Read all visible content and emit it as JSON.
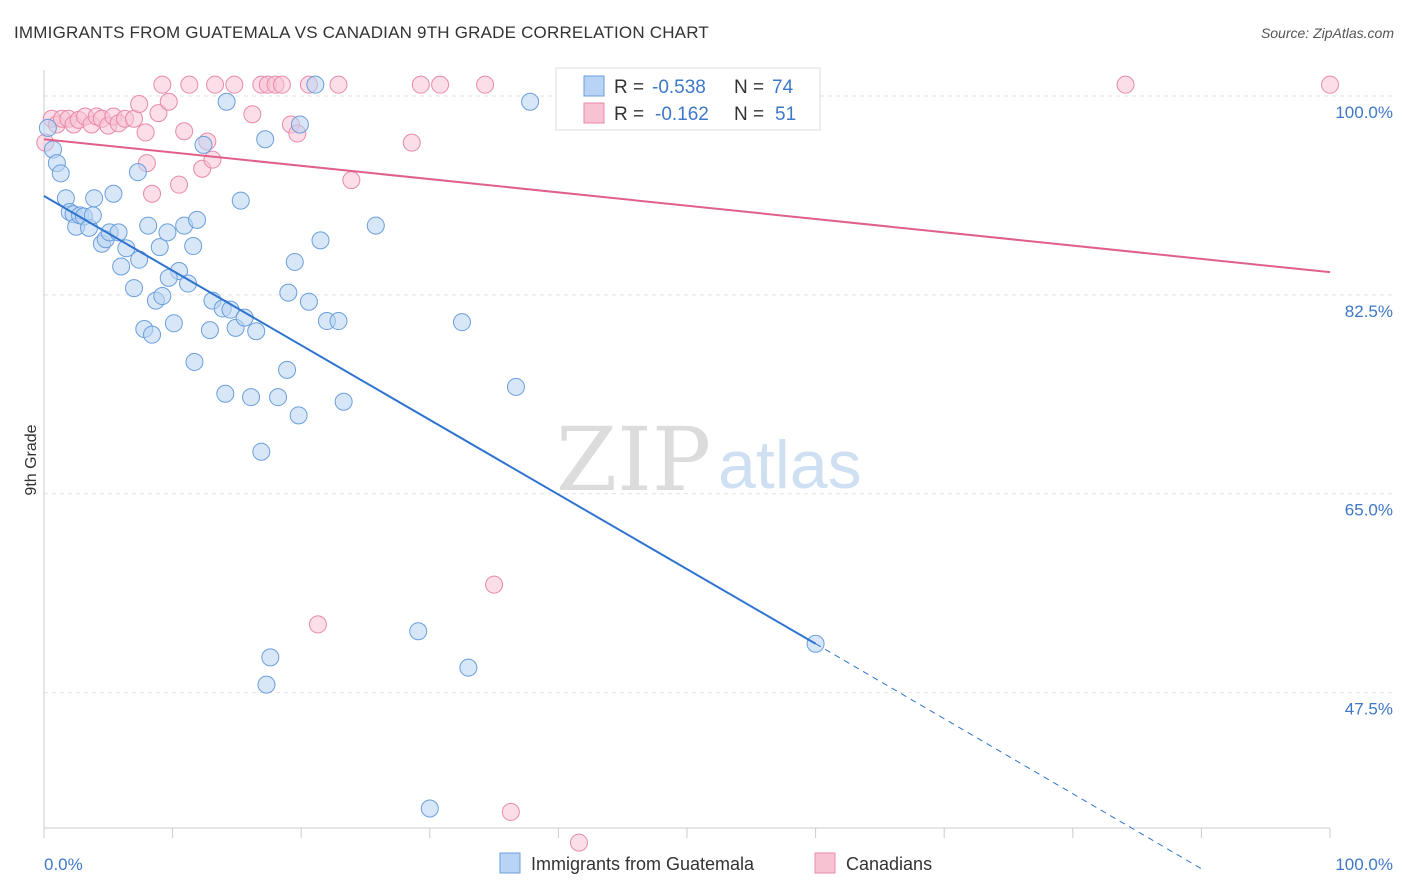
{
  "title": "IMMIGRANTS FROM GUATEMALA VS CANADIAN 9TH GRADE CORRELATION CHART",
  "source": "Source: ZipAtlas.com",
  "watermark": {
    "zip": "ZIP",
    "atlas": "atlas"
  },
  "colors": {
    "blue_fill": "#b8d3f3",
    "blue_stroke": "#6a9fdc",
    "blue_line": "#2f74d0",
    "pink_fill": "#f7c3d3",
    "pink_stroke": "#e98aaa",
    "pink_line": "#e0608a",
    "grid": "#e2e2e2",
    "tick_text": "#3e78c8"
  },
  "legend": {
    "rows": [
      {
        "r_label": "R =",
        "r_value": "-0.538",
        "n_label": "N =",
        "n_value": "74"
      },
      {
        "r_label": "R =",
        "r_value": "-0.162",
        "n_label": "N =",
        "n_value": "51"
      }
    ]
  },
  "bottom_legend": {
    "series1": "Immigrants from Guatemala",
    "series2": "Canadians"
  },
  "chart_data": {
    "type": "scatter",
    "title": "IMMIGRANTS FROM GUATEMALA VS CANADIAN 9TH GRADE CORRELATION CHART",
    "xlabel": "",
    "ylabel": "9th Grade",
    "xlim": [
      0,
      100
    ],
    "ylim": [
      34,
      101.5
    ],
    "x_tick_labels": [
      "0.0%",
      "100.0%"
    ],
    "y_ticks": [
      47.5,
      65.0,
      82.5,
      100.0
    ],
    "y_tick_labels": [
      "47.5%",
      "65.0%",
      "82.5%",
      "100.0%"
    ],
    "grid": "horizontal dashed",
    "legend_placement": "top-center",
    "series": [
      {
        "name": "Immigrants from Guatemala",
        "color": "#b8d3f3",
        "R": -0.538,
        "N": 74,
        "trend": {
          "x": [
            0,
            60
          ],
          "y": [
            91.2,
            51.8
          ],
          "dashed_extension_to": [
            90,
            32.0
          ]
        },
        "points": [
          [
            0.3,
            97.2
          ],
          [
            0.7,
            95.3
          ],
          [
            1.0,
            94.1
          ],
          [
            1.3,
            93.2
          ],
          [
            1.7,
            91.0
          ],
          [
            2.0,
            89.8
          ],
          [
            2.3,
            89.6
          ],
          [
            2.5,
            88.5
          ],
          [
            2.8,
            89.5
          ],
          [
            3.1,
            89.4
          ],
          [
            3.5,
            88.4
          ],
          [
            3.8,
            89.5
          ],
          [
            3.9,
            91.0
          ],
          [
            4.5,
            87.0
          ],
          [
            4.8,
            87.4
          ],
          [
            5.1,
            88.0
          ],
          [
            5.4,
            91.4
          ],
          [
            5.8,
            88.0
          ],
          [
            6.0,
            85.0
          ],
          [
            6.4,
            86.6
          ],
          [
            7.0,
            83.1
          ],
          [
            7.4,
            85.6
          ],
          [
            7.8,
            79.5
          ],
          [
            8.1,
            88.6
          ],
          [
            8.4,
            79.0
          ],
          [
            8.7,
            82.0
          ],
          [
            9.0,
            86.7
          ],
          [
            9.2,
            82.4
          ],
          [
            9.6,
            88.0
          ],
          [
            10.1,
            80.0
          ],
          [
            10.5,
            84.6
          ],
          [
            10.9,
            88.6
          ],
          [
            11.2,
            83.5
          ],
          [
            11.6,
            86.8
          ],
          [
            11.9,
            89.1
          ],
          [
            12.4,
            95.7
          ],
          [
            12.9,
            79.4
          ],
          [
            13.1,
            82.0
          ],
          [
            13.9,
            81.3
          ],
          [
            14.1,
            73.8
          ],
          [
            14.2,
            99.5
          ],
          [
            14.5,
            81.2
          ],
          [
            14.9,
            79.6
          ],
          [
            15.3,
            90.8
          ],
          [
            15.6,
            80.5
          ],
          [
            16.1,
            73.5
          ],
          [
            16.5,
            79.3
          ],
          [
            16.9,
            68.7
          ],
          [
            17.3,
            48.2
          ],
          [
            17.6,
            50.6
          ],
          [
            18.2,
            73.5
          ],
          [
            18.9,
            75.9
          ],
          [
            19.0,
            82.7
          ],
          [
            19.5,
            85.4
          ],
          [
            19.8,
            71.9
          ],
          [
            19.9,
            97.5
          ],
          [
            20.6,
            81.9
          ],
          [
            21.1,
            101.0
          ],
          [
            21.5,
            87.3
          ],
          [
            22.0,
            80.2
          ],
          [
            22.9,
            80.2
          ],
          [
            23.3,
            73.1
          ],
          [
            25.8,
            88.6
          ],
          [
            29.1,
            52.9
          ],
          [
            30.0,
            37.3
          ],
          [
            32.5,
            80.1
          ],
          [
            33.0,
            49.7
          ],
          [
            36.7,
            74.4
          ],
          [
            37.8,
            99.5
          ],
          [
            60.0,
            51.8
          ],
          [
            7.3,
            93.3
          ],
          [
            9.7,
            84.0
          ],
          [
            11.7,
            76.6
          ],
          [
            17.2,
            96.2
          ]
        ]
      },
      {
        "name": "Canadians",
        "color": "#f7c3d3",
        "R": -0.162,
        "N": 51,
        "trend": {
          "x": [
            0,
            100
          ],
          "y": [
            96.2,
            84.5
          ]
        },
        "points": [
          [
            0.1,
            95.9
          ],
          [
            0.6,
            98.0
          ],
          [
            1.0,
            97.5
          ],
          [
            1.4,
            98.0
          ],
          [
            1.9,
            98.0
          ],
          [
            2.3,
            97.5
          ],
          [
            2.7,
            97.9
          ],
          [
            3.2,
            98.2
          ],
          [
            3.7,
            97.5
          ],
          [
            4.1,
            98.2
          ],
          [
            4.5,
            98.0
          ],
          [
            5.0,
            97.4
          ],
          [
            5.4,
            98.2
          ],
          [
            5.8,
            97.6
          ],
          [
            6.3,
            98.0
          ],
          [
            7.0,
            98.0
          ],
          [
            7.4,
            99.3
          ],
          [
            7.9,
            96.8
          ],
          [
            8.0,
            94.1
          ],
          [
            8.4,
            91.4
          ],
          [
            8.9,
            98.5
          ],
          [
            9.2,
            101.0
          ],
          [
            9.7,
            99.5
          ],
          [
            10.5,
            92.2
          ],
          [
            10.9,
            96.9
          ],
          [
            11.3,
            101.0
          ],
          [
            12.3,
            93.6
          ],
          [
            12.7,
            96.0
          ],
          [
            13.1,
            94.4
          ],
          [
            13.3,
            101.0
          ],
          [
            14.8,
            101.0
          ],
          [
            16.2,
            98.4
          ],
          [
            16.9,
            101.0
          ],
          [
            17.4,
            101.0
          ],
          [
            18.0,
            101.0
          ],
          [
            18.5,
            101.0
          ],
          [
            19.2,
            97.5
          ],
          [
            19.7,
            96.7
          ],
          [
            20.6,
            101.0
          ],
          [
            21.3,
            53.5
          ],
          [
            22.9,
            101.0
          ],
          [
            23.9,
            92.6
          ],
          [
            28.6,
            95.9
          ],
          [
            29.3,
            101.0
          ],
          [
            30.8,
            101.0
          ],
          [
            34.3,
            101.0
          ],
          [
            35.0,
            57.0
          ],
          [
            36.3,
            37.0
          ],
          [
            41.6,
            34.3
          ],
          [
            84.1,
            101.0
          ],
          [
            100.0,
            101.0
          ]
        ]
      }
    ]
  }
}
